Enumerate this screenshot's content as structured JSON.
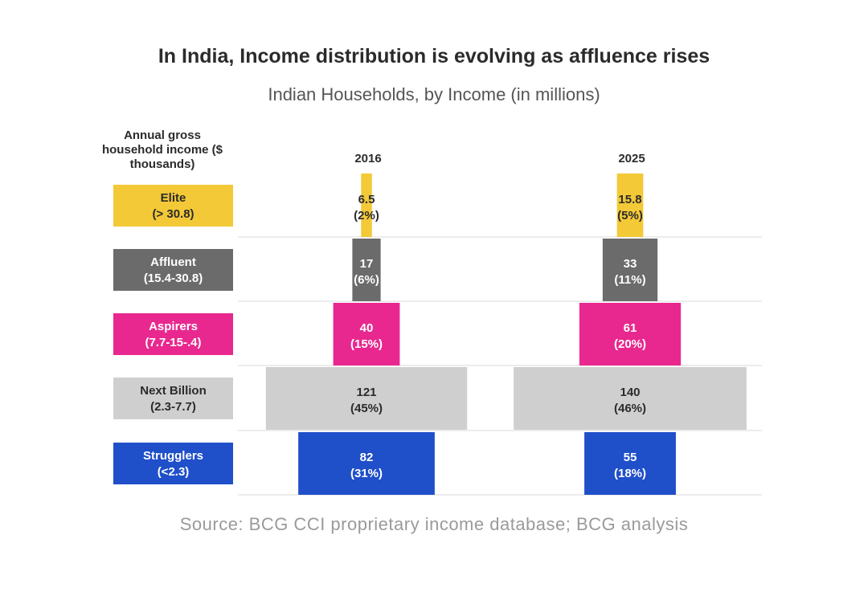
{
  "chart_data": {
    "type": "bar",
    "title": "In India, Income distribution is evolving as affluence rises",
    "subtitle": "Indian Households, by Income (in millions)",
    "category_axis_label": "Annual gross household income ($ thousands)",
    "source": "Source: BCG CCI proprietary income database; BCG analysis",
    "categories": [
      {
        "name": "Elite",
        "range": "(> 30.8)",
        "color": "#f3c937",
        "text_color": "#2b2b2b"
      },
      {
        "name": "Affluent",
        "range": "(15.4-30.8)",
        "color": "#6b6b6b",
        "text_color": "#ffffff"
      },
      {
        "name": "Aspirers",
        "range": "(7.7-15-.4)",
        "color": "#e8288f",
        "text_color": "#ffffff"
      },
      {
        "name": "Next Billion",
        "range": "(2.3-7.7)",
        "color": "#cfcfcf",
        "text_color": "#2b2b2b"
      },
      {
        "name": "Strugglers",
        "range": "(<2.3)",
        "color": "#1f4fc9",
        "text_color": "#ffffff"
      }
    ],
    "series": [
      {
        "name": "2016",
        "values": [
          6.5,
          17,
          40,
          121,
          82
        ],
        "value_labels": [
          "6.5",
          "17",
          "40",
          "121",
          "82"
        ],
        "shares": [
          "(2%)",
          "(6%)",
          "(15%)",
          "(45%)",
          "(31%)"
        ]
      },
      {
        "name": "2025",
        "values": [
          15.8,
          33,
          61,
          140,
          55
        ],
        "value_labels": [
          "15.8",
          "33",
          "61",
          "140",
          "55"
        ],
        "shares": [
          "(5%)",
          "(11%)",
          "(20%)",
          "(46%)",
          "(18%)"
        ]
      }
    ],
    "grid": true
  }
}
